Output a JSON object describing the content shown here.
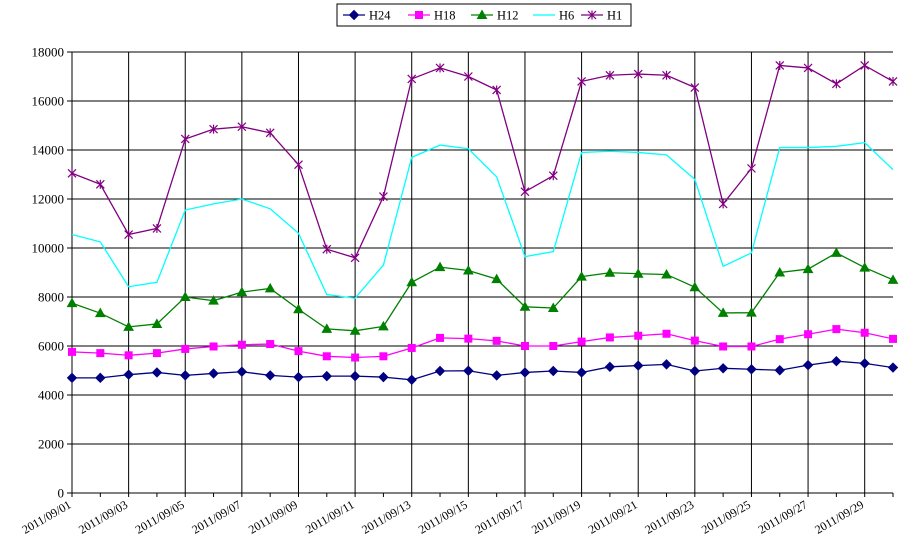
{
  "chart_data": {
    "type": "line",
    "x": [
      "2011/09/01",
      "2011/09/02",
      "2011/09/03",
      "2011/09/04",
      "2011/09/05",
      "2011/09/06",
      "2011/09/07",
      "2011/09/08",
      "2011/09/09",
      "2011/09/10",
      "2011/09/11",
      "2011/09/12",
      "2011/09/13",
      "2011/09/14",
      "2011/09/15",
      "2011/09/16",
      "2011/09/17",
      "2011/09/18",
      "2011/09/19",
      "2011/09/20",
      "2011/09/21",
      "2011/09/22",
      "2011/09/23",
      "2011/09/24",
      "2011/09/25",
      "2011/09/26",
      "2011/09/27",
      "2011/09/28",
      "2011/09/29",
      "2011/09/30"
    ],
    "x_tick_labels": [
      "2011/09/01",
      "2011/09/03",
      "2011/09/05",
      "2011/09/07",
      "2011/09/09",
      "2011/09/11",
      "2011/09/13",
      "2011/09/15",
      "2011/09/17",
      "2011/09/19",
      "2011/09/21",
      "2011/09/23",
      "2011/09/25",
      "2011/09/27",
      "2011/09/29"
    ],
    "y_ticks": [
      "0",
      "2000",
      "4000",
      "6000",
      "8000",
      "10000",
      "12000",
      "14000",
      "16000",
      "18000"
    ],
    "ylim": [
      0,
      18000
    ],
    "grid": "vertical and horizontal",
    "legend_position": "top-center",
    "series": [
      {
        "name": "H24",
        "color": "#000080",
        "marker": "diamond",
        "values": [
          4700,
          4700,
          4830,
          4920,
          4800,
          4880,
          4950,
          4800,
          4730,
          4770,
          4770,
          4730,
          4620,
          4980,
          4990,
          4800,
          4920,
          4980,
          4920,
          5150,
          5200,
          5250,
          4980,
          5090,
          5050,
          5010,
          5220,
          5380,
          5290,
          5120
        ]
      },
      {
        "name": "H18",
        "color": "#ff00ff",
        "marker": "square",
        "values": [
          5760,
          5710,
          5620,
          5710,
          5880,
          5980,
          6050,
          6080,
          5790,
          5580,
          5530,
          5580,
          5920,
          6330,
          6300,
          6210,
          6000,
          6000,
          6180,
          6350,
          6420,
          6500,
          6220,
          5980,
          5980,
          6280,
          6480,
          6690,
          6540,
          6290
        ]
      },
      {
        "name": "H12",
        "color": "#008000",
        "marker": "triangle",
        "values": [
          7750,
          7340,
          6780,
          6900,
          8000,
          7850,
          8200,
          8350,
          7500,
          6700,
          6620,
          6800,
          8600,
          9220,
          9080,
          8730,
          7600,
          7550,
          8830,
          8990,
          8950,
          8920,
          8400,
          7350,
          7360,
          9000,
          9140,
          9800,
          9200,
          8700
        ]
      },
      {
        "name": "H6",
        "color": "#00ffff",
        "marker": "none",
        "values": [
          10550,
          10250,
          8420,
          8600,
          11550,
          11800,
          12000,
          11600,
          10600,
          8100,
          7950,
          9300,
          13700,
          14200,
          14050,
          12900,
          9650,
          9850,
          13900,
          13950,
          13900,
          13800,
          12800,
          9250,
          9800,
          14100,
          14100,
          14150,
          14300,
          13200
        ]
      },
      {
        "name": "H1",
        "color": "#800080",
        "marker": "star",
        "values": [
          13050,
          12600,
          10550,
          10800,
          14450,
          14850,
          14950,
          14700,
          13400,
          9950,
          9600,
          12100,
          16900,
          17350,
          17000,
          16450,
          12300,
          12950,
          16800,
          17050,
          17100,
          17050,
          16550,
          11800,
          13250,
          17450,
          17350,
          16700,
          17450,
          16800
        ]
      }
    ]
  }
}
